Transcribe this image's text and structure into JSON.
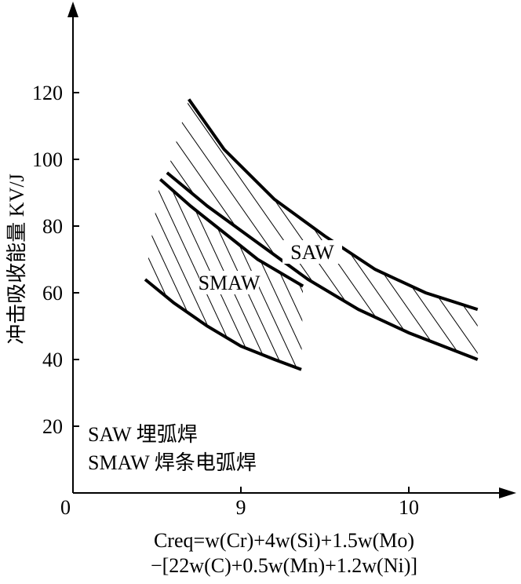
{
  "chart_data": {
    "type": "band",
    "y_label": "冲击吸收能量 KV/J",
    "x_label": [
      "Creq=w(Cr)+4w(Si)+1.5w(Mo)",
      "−[22w(C)+0.5w(Mn)+1.2w(Ni)]"
    ],
    "xlim": [
      8,
      10.6
    ],
    "xticks": [
      9,
      10
    ],
    "ylim": [
      0,
      147
    ],
    "yticks": [
      0,
      20,
      40,
      60,
      80,
      100,
      120
    ],
    "bands": [
      {
        "label": "SAW",
        "hatch": "#000000",
        "upper": {
          "x": [
            8.69,
            8.9,
            9.2,
            9.5,
            9.8,
            10.1,
            10.41
          ],
          "y": [
            118,
            103,
            88,
            77,
            67,
            60,
            55
          ]
        },
        "lower": {
          "x": [
            8.56,
            8.8,
            9.1,
            9.4,
            9.7,
            10.0,
            10.41
          ],
          "y": [
            96,
            86,
            75,
            64,
            55,
            48,
            40
          ]
        }
      },
      {
        "label": "SMAW",
        "hatch": "#000000",
        "upper": {
          "x": [
            8.52,
            8.7,
            8.9,
            9.1,
            9.37
          ],
          "y": [
            94,
            86,
            78,
            70,
            62
          ]
        },
        "lower": {
          "x": [
            8.43,
            8.6,
            8.8,
            9.0,
            9.2,
            9.36
          ],
          "y": [
            64,
            57,
            50,
            44,
            40,
            37
          ]
        }
      }
    ],
    "notes": [
      "SAW 埋弧焊",
      "SMAW 焊条电弧焊"
    ]
  }
}
